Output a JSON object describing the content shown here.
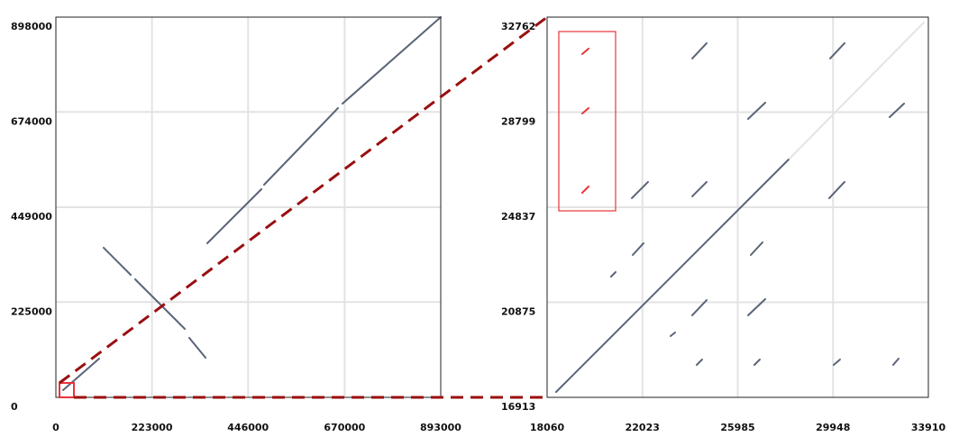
{
  "chart_data": [
    {
      "type": "dotplot",
      "xlim": [
        0,
        893000
      ],
      "ylim": [
        0,
        898000
      ],
      "xticks": [
        0,
        223000,
        446000,
        670000,
        893000
      ],
      "yticks": [
        0,
        225000,
        449000,
        674000,
        898000
      ],
      "grid": true,
      "series": [
        {
          "color": "#5a6478",
          "segments": [
            {
              "x": [
                16700,
                100400
              ],
              "y": [
                17000,
                91500
              ]
            },
            {
              "x": [
                351300,
                476800
              ],
              "y": [
                363900,
                491600
              ]
            },
            {
              "x": [
                483100,
                654600
              ],
              "y": [
                502200,
                683100
              ]
            },
            {
              "x": [
                665000,
                893000
              ],
              "y": [
                693700,
                898000
              ]
            },
            {
              "x": [
                110800,
                173600
              ],
              "y": [
                353300,
                289400
              ]
            },
            {
              "x": [
                184000,
                299100
              ],
              "y": [
                278800,
                161700
              ]
            },
            {
              "x": [
                309500,
                347200
              ],
              "y": [
                140500,
                93600
              ]
            }
          ]
        }
      ]
    },
    {
      "type": "dotplot",
      "xlim": [
        18060,
        33910
      ],
      "ylim": [
        16913,
        32762
      ],
      "xticks": [
        18060,
        22023,
        25985,
        29948,
        33910
      ],
      "yticks": [
        16913,
        20875,
        24837,
        28799,
        32762
      ],
      "grid": true,
      "series": [
        {
          "color": "#5a6478",
          "segments": [
            {
              "x": [
                18435,
                28139
              ],
              "y": [
                17138,
                26866
              ]
            },
            {
              "x": [
                24093,
                24693
              ],
              "y": [
                31036,
                31674
              ]
            },
            {
              "x": [
                29826,
                30425
              ],
              "y": [
                31036,
                31674
              ]
            },
            {
              "x": [
                26416,
                27128
              ],
              "y": [
                28519,
                29195
              ]
            },
            {
              "x": [
                32299,
                32898
              ],
              "y": [
                28594,
                29157
              ]
            },
            {
              "x": [
                21582,
                22256
              ],
              "y": [
                25214,
                25890
              ]
            },
            {
              "x": [
                24093,
                24693
              ],
              "y": [
                25289,
                25890
              ]
            },
            {
              "x": [
                29788,
                30425
              ],
              "y": [
                25214,
                25890
              ]
            },
            {
              "x": [
                21620,
                22069
              ],
              "y": [
                22847,
                23336
              ]
            },
            {
              "x": [
                20720,
                20908
              ],
              "y": [
                21946,
                22134
              ]
            },
            {
              "x": [
                26528,
                27015
              ],
              "y": [
                22847,
                23373
              ]
            },
            {
              "x": [
                24093,
                24693
              ],
              "y": [
                20331,
                20969
              ]
            },
            {
              "x": [
                26416,
                27128
              ],
              "y": [
                20331,
                21007
              ]
            },
            {
              "x": [
                23193,
                23381
              ],
              "y": [
                19467,
                19617
              ]
            },
            {
              "x": [
                24280,
                24505
              ],
              "y": [
                18265,
                18490
              ]
            },
            {
              "x": [
                26678,
                26903
              ],
              "y": [
                18265,
                18490
              ]
            },
            {
              "x": [
                29975,
                30237
              ],
              "y": [
                18265,
                18490
              ]
            },
            {
              "x": [
                32448,
                32673
              ],
              "y": [
                18265,
                18528
              ]
            }
          ]
        },
        {
          "color": "#e4e4e4",
          "segments": [
            {
              "x": [
                28139,
                33723
              ],
              "y": [
                26866,
                32538
              ]
            }
          ]
        },
        {
          "color": "#e8343a",
          "segments": [
            {
              "x": [
                19521,
                19784
              ],
              "y": [
                31224,
                31449
              ]
            },
            {
              "x": [
                19521,
                19784
              ],
              "y": [
                28744,
                28970
              ]
            },
            {
              "x": [
                19521,
                19784
              ],
              "y": [
                25439,
                25702
              ]
            }
          ]
        }
      ]
    }
  ]
}
